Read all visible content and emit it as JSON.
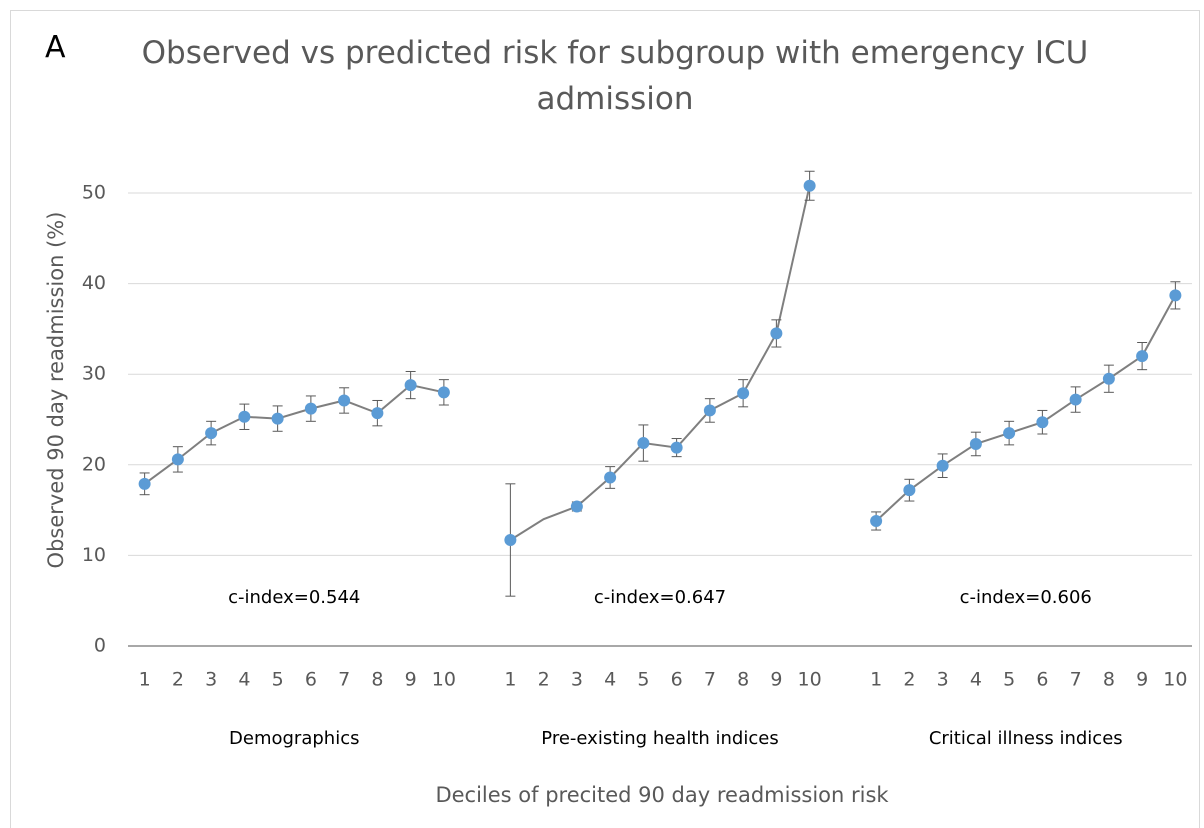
{
  "chart_data": {
    "type": "line",
    "panel_label": "A",
    "title": "Observed vs predicted risk for subgroup with emergency ICU admission",
    "y_label": "Observed 90 day readmission (%)",
    "x_label": "Deciles of precited 90 day readmission risk",
    "ylim": [
      0,
      50
    ],
    "yticks": [
      0,
      10,
      20,
      30,
      40,
      50
    ],
    "grid": true,
    "marker_color": "#5b9bd5",
    "line_color": "#7f7f7f",
    "groups": [
      {
        "name": "Demographics",
        "annotation": "c-index=0.544",
        "categories": [
          "1",
          "2",
          "3",
          "4",
          "5",
          "6",
          "7",
          "8",
          "9",
          "10"
        ],
        "values": [
          17.9,
          20.6,
          23.5,
          25.3,
          25.1,
          26.2,
          27.1,
          25.7,
          28.8,
          28.0
        ],
        "errors": [
          1.2,
          1.4,
          1.3,
          1.4,
          1.4,
          1.4,
          1.4,
          1.4,
          1.5,
          1.4
        ]
      },
      {
        "name": "Pre-existing health indices",
        "annotation": "c-index=0.647",
        "categories": [
          "1",
          "2",
          "3",
          "4",
          "5",
          "6",
          "7",
          "8",
          "9",
          "10"
        ],
        "values": [
          11.7,
          14.0,
          15.4,
          18.6,
          22.4,
          21.9,
          26.0,
          27.9,
          34.5,
          50.8
        ],
        "errors": [
          6.2,
          null,
          0.5,
          1.2,
          2.0,
          1.0,
          1.3,
          1.5,
          1.5,
          1.6
        ]
      },
      {
        "name": "Critical illness indices",
        "annotation": "c-index=0.606",
        "categories": [
          "1",
          "2",
          "3",
          "4",
          "5",
          "6",
          "7",
          "8",
          "9",
          "10"
        ],
        "values": [
          13.8,
          17.2,
          19.9,
          22.3,
          23.5,
          24.7,
          27.2,
          29.5,
          32.0,
          38.7
        ],
        "errors": [
          1.0,
          1.2,
          1.3,
          1.3,
          1.3,
          1.3,
          1.4,
          1.5,
          1.5,
          1.5
        ]
      }
    ]
  }
}
